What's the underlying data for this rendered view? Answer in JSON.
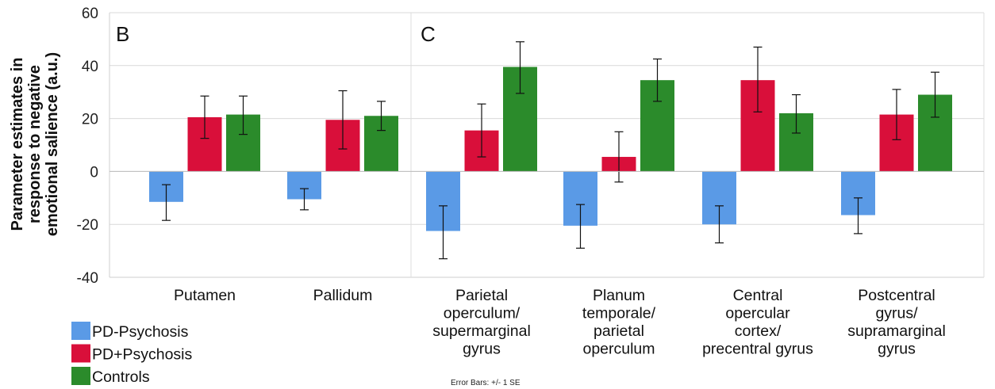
{
  "chart_data": {
    "type": "bar",
    "ylabel_lines": [
      "Parameter estimates in",
      "response to negative",
      "emotional salience (a.u.)"
    ],
    "ylim": [
      -40,
      60
    ],
    "yticks": [
      -40,
      -20,
      0,
      20,
      40,
      60
    ],
    "grid": true,
    "panels": [
      {
        "label": "B",
        "category_indices": [
          0,
          1
        ]
      },
      {
        "label": "C",
        "category_indices": [
          2,
          3,
          4,
          5
        ]
      }
    ],
    "categories": [
      [
        "Putamen"
      ],
      [
        "Pallidum"
      ],
      [
        "Parietal",
        "operculum/",
        "supermarginal",
        "gyrus"
      ],
      [
        "Planum",
        "temporale/",
        "parietal",
        "operculum"
      ],
      [
        "Central",
        "opercular",
        "cortex/",
        "precentral gyrus"
      ],
      [
        "Postcentral",
        "gyrus/",
        "supramarginal",
        "gyrus"
      ]
    ],
    "series": [
      {
        "name": "PD-Psychosis",
        "color": "#5a9ae6",
        "values": [
          -11.5,
          -10.5,
          -22.5,
          -20.5,
          -20,
          -16.5
        ],
        "se_low": [
          -18.5,
          -14.5,
          -33,
          -29,
          -27,
          -23.5
        ],
        "se_high": [
          -5,
          -6.5,
          -13,
          -12.5,
          -13,
          -10
        ]
      },
      {
        "name": "PD+Psychosis",
        "color": "#d90f3a",
        "values": [
          20.5,
          19.5,
          15.5,
          5.5,
          34.5,
          21.5
        ],
        "se_low": [
          12.5,
          8.5,
          5.5,
          -4,
          22.5,
          12
        ],
        "se_high": [
          28.5,
          30.5,
          25.5,
          15,
          47,
          31
        ]
      },
      {
        "name": "Controls",
        "color": "#2b8b2b",
        "values": [
          21.5,
          21,
          39.5,
          34.5,
          22,
          29
        ],
        "se_low": [
          14,
          15.5,
          29.5,
          26.5,
          14.5,
          20.5
        ],
        "se_high": [
          28.5,
          26.5,
          49,
          42.5,
          29,
          37.5
        ]
      }
    ],
    "legend_position": "bottom-left",
    "note": "Error Bars: +/- 1 SE"
  }
}
